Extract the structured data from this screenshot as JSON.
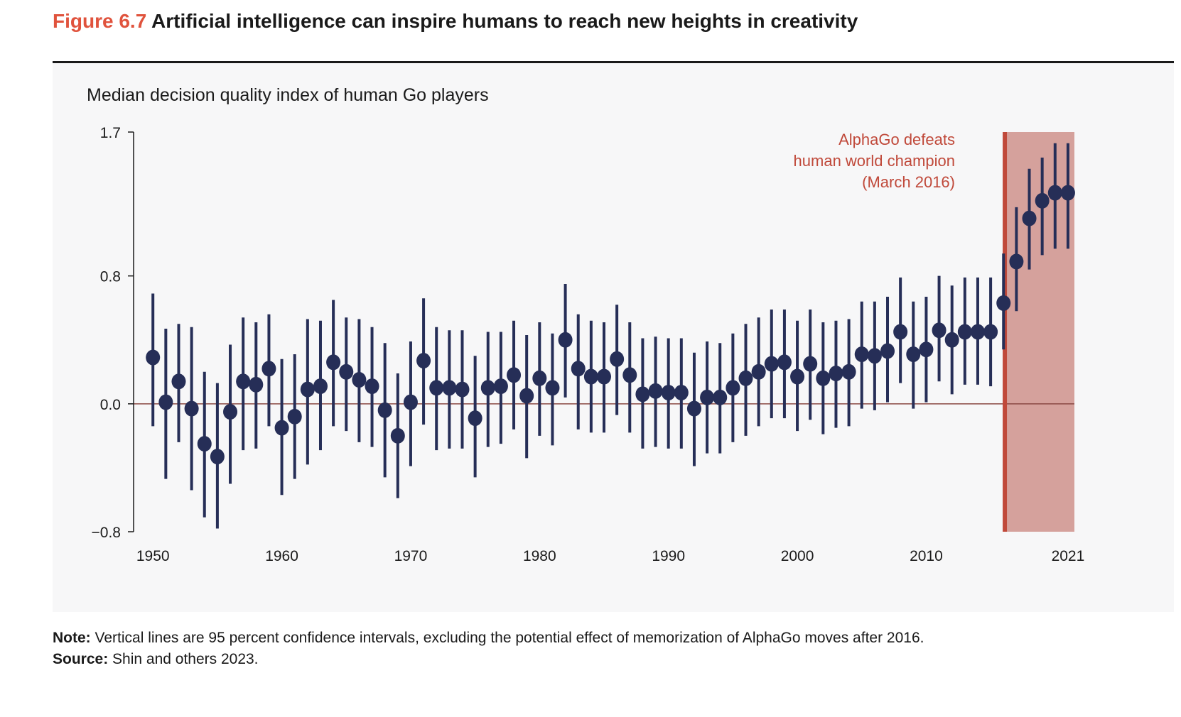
{
  "header": {
    "figure_number": "Figure 6.7",
    "title": "Artificial intelligence can inspire humans to reach new heights in creativity"
  },
  "footer": {
    "note_label": "Note:",
    "note_text": " Vertical lines are 95 percent confidence intervals, excluding the potential effect of memorization of AlphaGo moves after 2016.",
    "source_label": "Source:",
    "source_text": " Shin and others 2023."
  },
  "colors": {
    "marker": "#262e57",
    "annotation": "#c0493a",
    "shade": "#d5a19c",
    "zero_line": "#8a4a44",
    "background": "#f7f7f8"
  },
  "chart_data": {
    "type": "scatter",
    "title": "Median decision quality index of human Go players",
    "xlabel": "",
    "ylabel": "",
    "ylim": [
      -0.8,
      1.7
    ],
    "xlim": [
      1948.5,
      2021.5
    ],
    "yticks": [
      -0.8,
      0.0,
      0.8,
      1.7
    ],
    "ytick_labels": [
      "−0.8",
      "0.0",
      "0.8",
      "1.7"
    ],
    "xticks": [
      1950,
      1960,
      1970,
      1980,
      1990,
      2000,
      2010,
      2021
    ],
    "xtick_labels": [
      "1950",
      "1960",
      "1970",
      "1980",
      "1990",
      "2000",
      "2010",
      "2021"
    ],
    "grid": false,
    "error_bars": "95 percent confidence intervals",
    "annotation": {
      "lines": [
        "AlphaGo defeats",
        "human world champion",
        "(March 2016)"
      ],
      "event_x": 2016.1,
      "shaded_from": 2016.1
    },
    "series": [
      {
        "x": [
          1950,
          1951,
          1952,
          1953,
          1954,
          1955,
          1956,
          1957,
          1958,
          1959,
          1960,
          1961,
          1962,
          1963,
          1964,
          1965,
          1966,
          1967,
          1968,
          1969,
          1970,
          1971,
          1972,
          1973,
          1974,
          1975,
          1976,
          1977,
          1978,
          1979,
          1980,
          1981,
          1982,
          1983,
          1984,
          1985,
          1986,
          1987,
          1988,
          1989,
          1990,
          1991,
          1992,
          1993,
          1994,
          1995,
          1996,
          1997,
          1998,
          1999,
          2000,
          2001,
          2002,
          2003,
          2004,
          2005,
          2006,
          2007,
          2008,
          2009,
          2010,
          2011,
          2012,
          2013,
          2014,
          2015,
          2016,
          2017,
          2018,
          2019,
          2020,
          2021
        ],
        "y": [
          0.29,
          0.01,
          0.14,
          -0.03,
          -0.25,
          -0.33,
          -0.05,
          0.14,
          0.12,
          0.22,
          -0.15,
          -0.08,
          0.09,
          0.11,
          0.26,
          0.2,
          0.15,
          0.11,
          -0.04,
          -0.2,
          0.01,
          0.27,
          0.1,
          0.1,
          0.09,
          -0.09,
          0.1,
          0.11,
          0.18,
          0.05,
          0.16,
          0.1,
          0.4,
          0.22,
          0.17,
          0.17,
          0.28,
          0.18,
          0.06,
          0.08,
          0.07,
          0.07,
          -0.03,
          0.04,
          0.04,
          0.1,
          0.16,
          0.2,
          0.25,
          0.26,
          0.17,
          0.25,
          0.16,
          0.19,
          0.2,
          0.31,
          0.3,
          0.33,
          0.45,
          0.31,
          0.34,
          0.46,
          0.4,
          0.45,
          0.45,
          0.45,
          0.63,
          0.89,
          1.16,
          1.27,
          1.32,
          1.32
        ],
        "lower": [
          -0.14,
          -0.47,
          -0.24,
          -0.54,
          -0.71,
          -0.78,
          -0.5,
          -0.29,
          -0.28,
          -0.14,
          -0.57,
          -0.47,
          -0.38,
          -0.29,
          -0.14,
          -0.17,
          -0.24,
          -0.27,
          -0.46,
          -0.59,
          -0.39,
          -0.13,
          -0.29,
          -0.28,
          -0.28,
          -0.46,
          -0.27,
          -0.25,
          -0.16,
          -0.34,
          -0.2,
          -0.26,
          0.04,
          -0.16,
          -0.18,
          -0.18,
          -0.07,
          -0.18,
          -0.28,
          -0.27,
          -0.28,
          -0.28,
          -0.39,
          -0.31,
          -0.31,
          -0.24,
          -0.2,
          -0.14,
          -0.09,
          -0.09,
          -0.17,
          -0.1,
          -0.19,
          -0.15,
          -0.14,
          -0.03,
          -0.04,
          0.01,
          0.13,
          -0.03,
          0.01,
          0.14,
          0.06,
          0.12,
          0.12,
          0.11,
          0.34,
          0.58,
          0.84,
          0.93,
          0.97,
          0.97
        ],
        "upper": [
          0.69,
          0.47,
          0.5,
          0.48,
          0.2,
          0.13,
          0.37,
          0.54,
          0.51,
          0.56,
          0.28,
          0.31,
          0.53,
          0.52,
          0.65,
          0.54,
          0.53,
          0.48,
          0.38,
          0.19,
          0.39,
          0.66,
          0.48,
          0.46,
          0.46,
          0.3,
          0.45,
          0.45,
          0.52,
          0.43,
          0.51,
          0.44,
          0.75,
          0.56,
          0.52,
          0.51,
          0.62,
          0.51,
          0.41,
          0.42,
          0.41,
          0.41,
          0.32,
          0.39,
          0.38,
          0.44,
          0.5,
          0.54,
          0.59,
          0.59,
          0.52,
          0.59,
          0.51,
          0.52,
          0.53,
          0.64,
          0.64,
          0.67,
          0.79,
          0.64,
          0.67,
          0.8,
          0.74,
          0.79,
          0.79,
          0.79,
          0.94,
          1.23,
          1.47,
          1.54,
          1.63,
          1.63
        ]
      }
    ]
  }
}
